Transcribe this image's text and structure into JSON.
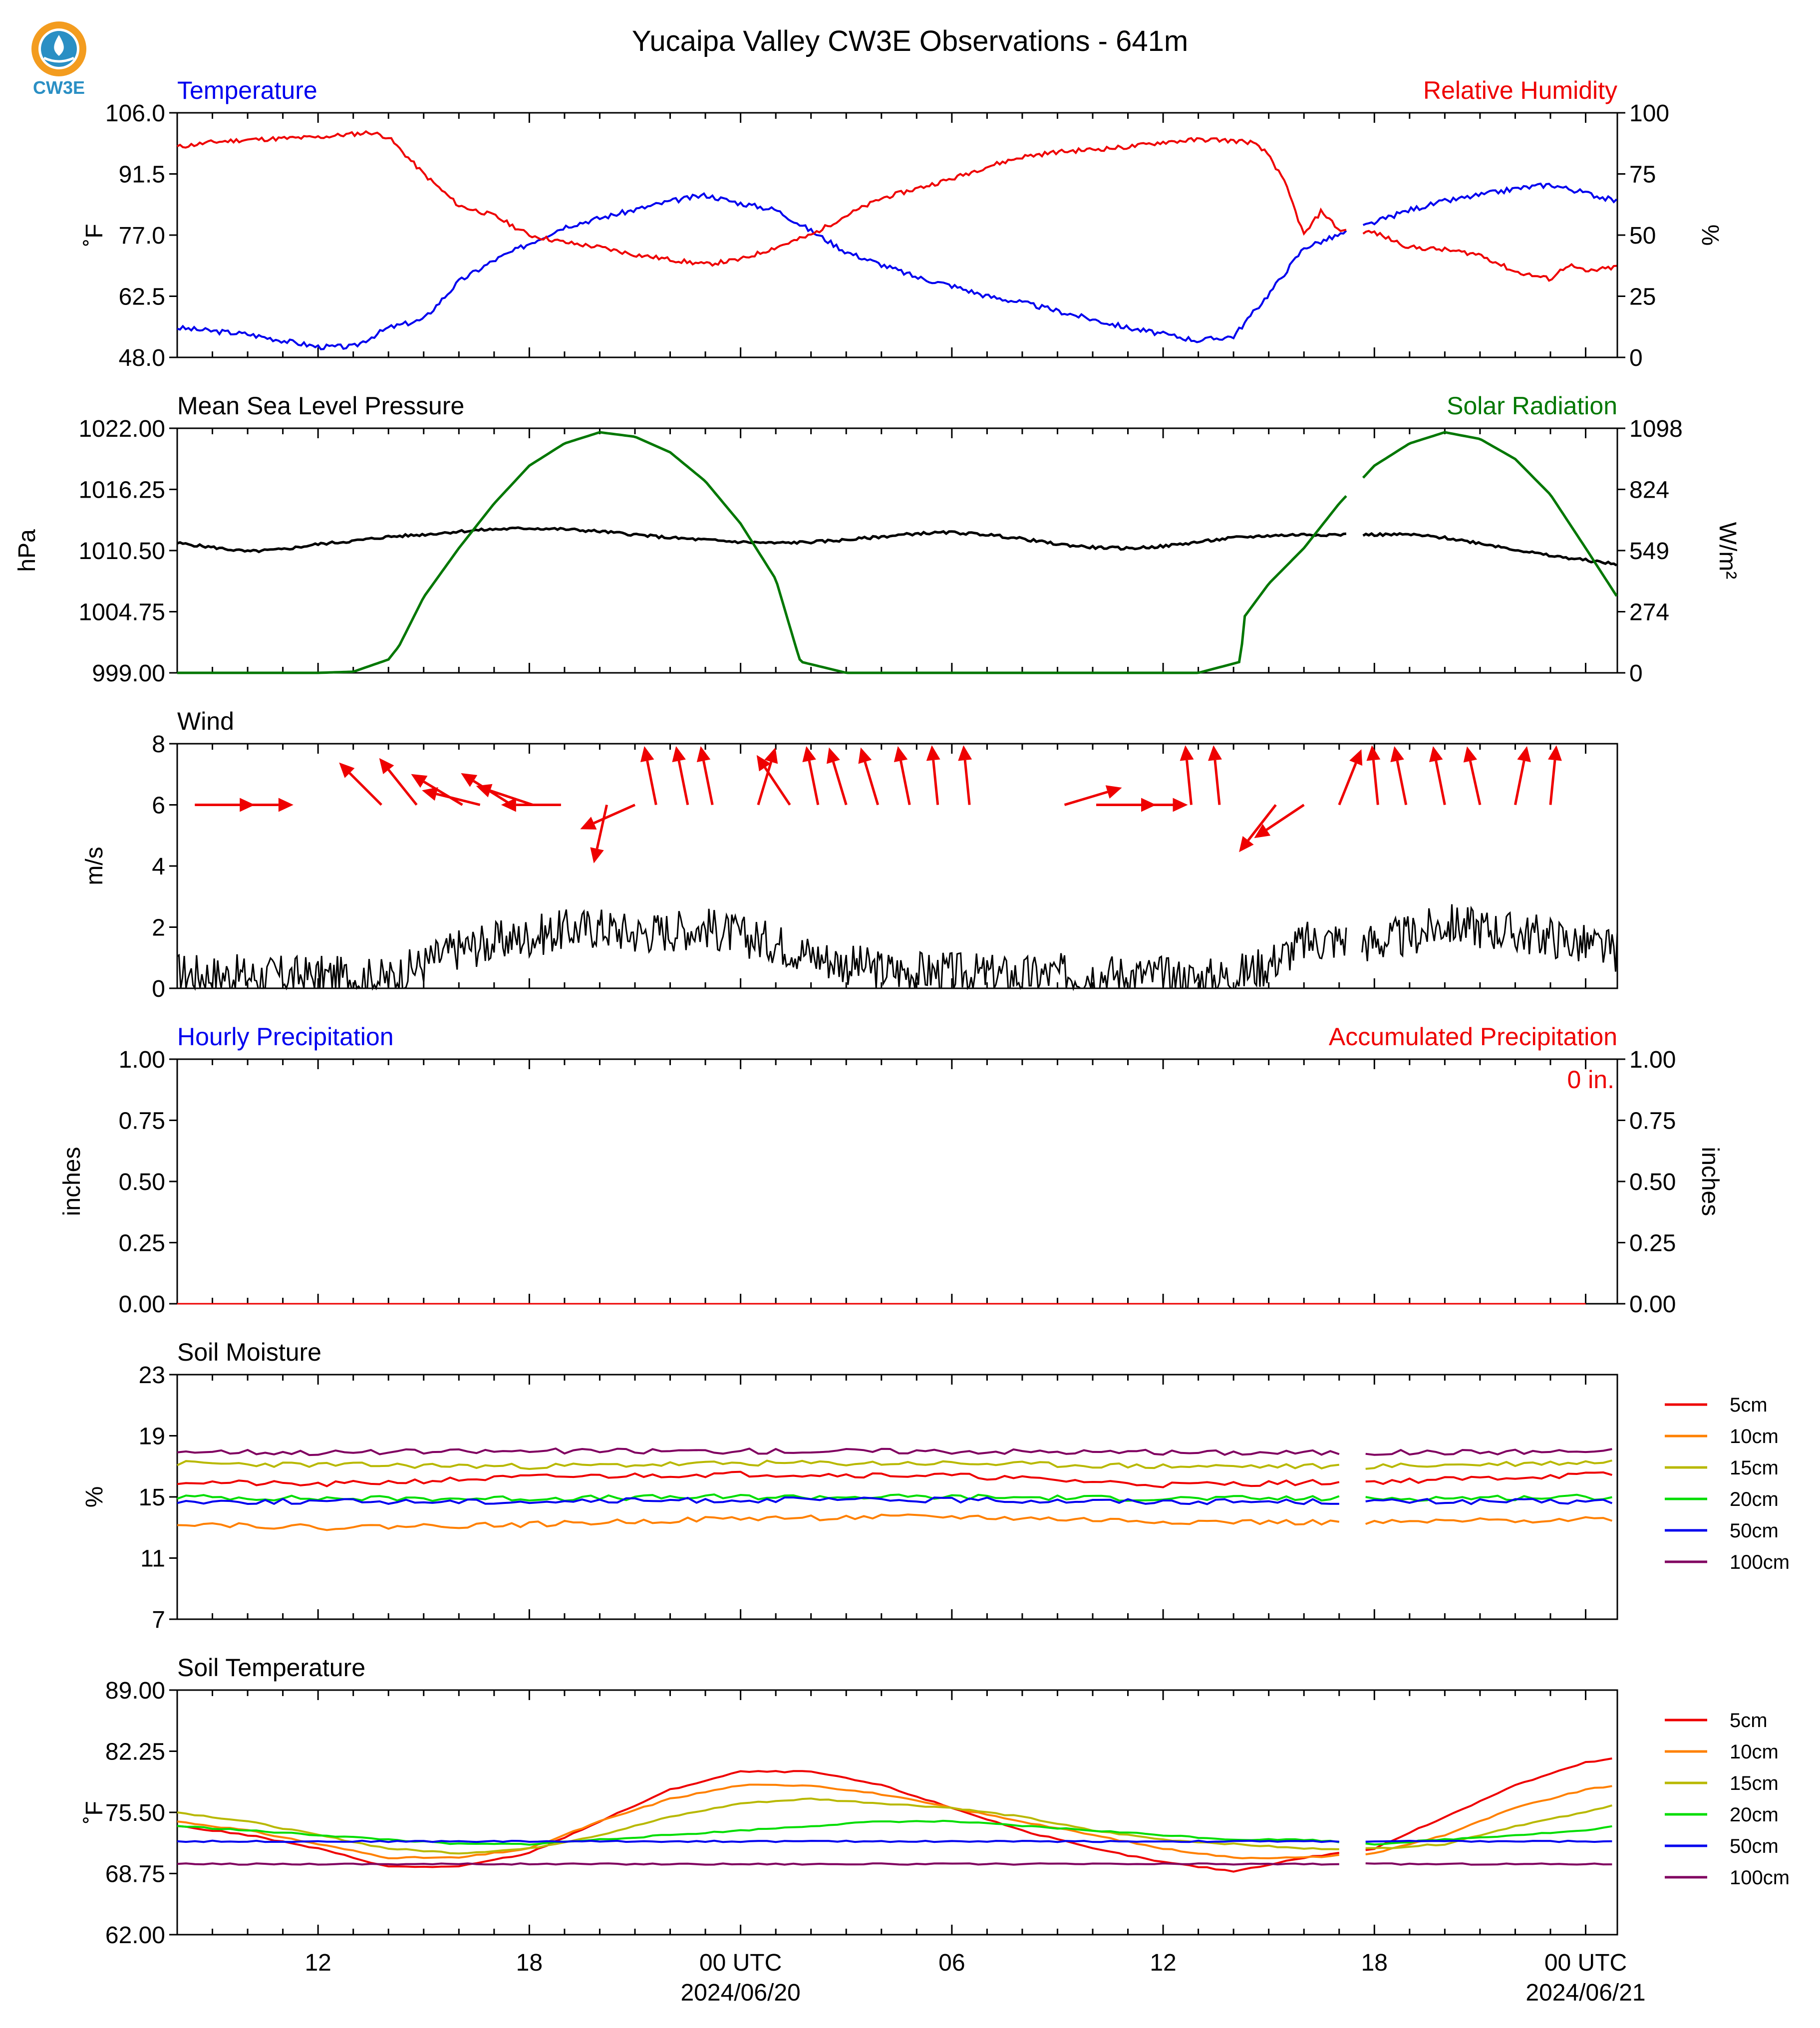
{
  "title": "Yucaipa Valley CW3E Observations - 641m",
  "logo": {
    "text": "CW3E",
    "color": "#2a8fc4",
    "accent": "#f39c1f"
  },
  "x_axis": {
    "ticks": [
      {
        "label": "12",
        "hour": 12
      },
      {
        "label": "18",
        "hour": 18
      },
      {
        "label": "00 UTC",
        "hour": 24
      },
      {
        "label": "06",
        "hour": 30
      },
      {
        "label": "12",
        "hour": 36
      },
      {
        "label": "18",
        "hour": 42
      },
      {
        "label": "00 UTC",
        "hour": 48
      }
    ],
    "dates": [
      {
        "label": "2024/06/20",
        "hour": 24
      },
      {
        "label": "2024/06/21",
        "hour": 48
      }
    ],
    "range_hours_utc": [
      8,
      48.9
    ],
    "reference": "2024/06/19 00 UTC = hour 0"
  },
  "panels": {
    "temp_rh": {
      "left_title": "Temperature",
      "right_title": "Relative Humidity",
      "left_ylabel": "˚F",
      "right_ylabel": "%",
      "left_ticks": [
        "106.0",
        "91.5",
        "77.0",
        "62.5",
        "48.0"
      ],
      "right_ticks": [
        "100",
        "75",
        "50",
        "25",
        "0"
      ]
    },
    "pressure_solar": {
      "left_title": "Mean Sea Level Pressure",
      "right_title": "Solar Radiation",
      "left_ylabel": "hPa",
      "right_ylabel": "W/m²",
      "left_ticks": [
        "1022.00",
        "1016.25",
        "1010.50",
        "1004.75",
        "999.00"
      ],
      "right_ticks": [
        "1098",
        "824",
        "549",
        "274",
        "0"
      ]
    },
    "wind": {
      "left_title": "Wind",
      "left_ylabel": "m/s",
      "left_ticks": [
        "8",
        "6",
        "4",
        "2",
        "0"
      ]
    },
    "precip": {
      "left_title": "Hourly Precipitation",
      "right_title": "Accumulated Precipitation",
      "left_ylabel": "inches",
      "right_ylabel": "inches",
      "left_ticks": [
        "1.00",
        "0.75",
        "0.50",
        "0.25",
        "0.00"
      ],
      "right_ticks": [
        "1.00",
        "0.75",
        "0.50",
        "0.25",
        "0.00"
      ],
      "accum_label": "0 in."
    },
    "soil_moisture": {
      "left_title": "Soil Moisture",
      "left_ylabel": "%",
      "left_ticks": [
        "23",
        "19",
        "15",
        "11",
        "7"
      ],
      "legend": [
        "5cm",
        "10cm",
        "15cm",
        "20cm",
        "50cm",
        "100cm"
      ]
    },
    "soil_temp": {
      "left_title": "Soil Temperature",
      "left_ylabel": "˚F",
      "left_ticks": [
        "89.00",
        "82.25",
        "75.50",
        "68.75",
        "62.00"
      ],
      "legend": [
        "5cm",
        "10cm",
        "15cm",
        "20cm",
        "50cm",
        "100cm"
      ]
    }
  },
  "colors": {
    "temperature": "#0000ee",
    "humidity": "#ee0000",
    "pressure": "#000000",
    "solar": "#007700",
    "wind_speed": "#000000",
    "wind_arrow": "#ee0000",
    "hourly_precip": "#0000ee",
    "accum_precip": "#ee0000",
    "depths": [
      "#ee0000",
      "#ff8000",
      "#b8b800",
      "#00dd00",
      "#0000ee",
      "#800060"
    ]
  },
  "chart_data": [
    {
      "type": "line",
      "panel": "temp_rh",
      "units_x": "hours since 2024/06/19 00 UTC",
      "series": [
        {
          "name": "Temperature",
          "axis": "left",
          "ylim": [
            48,
            106
          ],
          "x": [
            8,
            10,
            12,
            13,
            14,
            15,
            16,
            17,
            18,
            19,
            20,
            21,
            22,
            23,
            24,
            25,
            26,
            27,
            28,
            29,
            30,
            31,
            32,
            33,
            34,
            35,
            36,
            37,
            38,
            39,
            40,
            41,
            42,
            43,
            44,
            45,
            46,
            47,
            48,
            48.9
          ],
          "y": [
            55,
            53.5,
            50.5,
            50.5,
            55,
            57,
            66,
            71,
            75,
            79,
            81,
            83,
            85,
            86.5,
            84.5,
            83,
            78,
            73,
            70,
            67,
            65,
            62.5,
            61,
            59,
            57,
            55,
            53.5,
            52,
            53,
            63,
            74,
            77,
            80,
            83,
            85,
            86.5,
            88,
            89,
            87,
            85
          ]
        },
        {
          "name": "Relative Humidity",
          "axis": "right",
          "ylim": [
            0,
            100
          ],
          "x": [
            8,
            9,
            10,
            12,
            13.5,
            14,
            15,
            16,
            17,
            18,
            19,
            20,
            21,
            22,
            23,
            24,
            25,
            26,
            27,
            28,
            29,
            30,
            31,
            32,
            33,
            34,
            35,
            36,
            37,
            37.5,
            38.5,
            39,
            39.5,
            40,
            40.5,
            41,
            42,
            43,
            44,
            45,
            46,
            47,
            47.5,
            48,
            48.9
          ],
          "y": [
            86,
            88,
            89,
            90,
            92,
            90,
            75,
            62,
            58,
            50,
            47,
            45,
            42,
            40,
            38,
            40,
            45,
            50,
            58,
            65,
            69,
            73,
            78,
            82,
            84,
            85,
            86,
            88,
            89,
            89,
            88,
            83,
            70,
            50,
            60,
            52,
            51,
            45,
            44,
            42,
            35,
            32,
            38,
            35,
            37
          ]
        }
      ]
    },
    {
      "type": "line",
      "panel": "pressure_solar",
      "units_x": "hours since 2024/06/19 00 UTC",
      "series": [
        {
          "name": "Mean Sea Level Pressure",
          "axis": "left",
          "ylim": [
            999,
            1022
          ],
          "x": [
            8,
            9,
            10,
            11,
            12,
            13,
            14,
            15,
            16,
            17,
            18,
            19,
            20,
            21,
            22,
            23,
            24,
            25,
            26,
            27,
            28,
            29,
            30,
            31,
            32,
            33,
            34,
            35,
            36,
            37,
            38,
            39,
            40,
            41,
            42,
            43,
            44,
            45,
            46,
            47,
            48,
            48.9
          ],
          "y": [
            1011.2,
            1010.8,
            1010.4,
            1010.6,
            1011.1,
            1011.4,
            1011.8,
            1012,
            1012.3,
            1012.5,
            1012.6,
            1012.5,
            1012.3,
            1012.0,
            1011.7,
            1011.5,
            1011.3,
            1011.2,
            1011.3,
            1011.5,
            1011.8,
            1012.1,
            1012.2,
            1012,
            1011.6,
            1011.1,
            1010.8,
            1010.7,
            1010.9,
            1011.3,
            1011.7,
            1011.9,
            1012.0,
            1012.0,
            1012.0,
            1012.0,
            1011.7,
            1011.2,
            1010.6,
            1010.0,
            1009.6,
            1009.2
          ]
        },
        {
          "name": "Solar Radiation",
          "axis": "right",
          "ylim": [
            0,
            1098
          ],
          "x": [
            8,
            12,
            13,
            14,
            14.3,
            15,
            16,
            17,
            18,
            19,
            20,
            21,
            22,
            23,
            24,
            25,
            25.6,
            25.7,
            27,
            28,
            36,
            37,
            38.2,
            38.3,
            39,
            40,
            41,
            42,
            43,
            44,
            45,
            46,
            47,
            48,
            48.9
          ],
          "y": [
            0,
            0,
            5,
            60,
            120,
            340,
            560,
            760,
            930,
            1030,
            1080,
            1060,
            990,
            860,
            670,
            420,
            100,
            50,
            0,
            0,
            0,
            0,
            50,
            250,
            400,
            560,
            760,
            930,
            1030,
            1080,
            1050,
            960,
            800,
            560,
            340
          ]
        }
      ]
    },
    {
      "type": "line",
      "panel": "wind",
      "units_x": "hours since 2024/06/19 00 UTC",
      "ylim": [
        0,
        8
      ],
      "series": [
        {
          "name": "Wind",
          "x": [
            8,
            10,
            12,
            14,
            15,
            16,
            17,
            18,
            19,
            20,
            21,
            22,
            23,
            24,
            25,
            26,
            27,
            28,
            30,
            32,
            34,
            36,
            37,
            38,
            39,
            40,
            41,
            42,
            43,
            44,
            45,
            46,
            47,
            48,
            48.9
          ],
          "y": [
            0.5,
            0.4,
            0.4,
            0.3,
            0.8,
            1.3,
            1.5,
            1.7,
            1.9,
            2.0,
            1.8,
            1.9,
            2.0,
            1.7,
            1.5,
            1.1,
            0.8,
            0.6,
            0.5,
            0.4,
            0.5,
            0.4,
            0.3,
            0.4,
            0.8,
            1.5,
            1.6,
            1.5,
            1.7,
            2.1,
            2.0,
            1.8,
            1.7,
            1.4,
            1.2
          ]
        }
      ],
      "arrows": {
        "x": [
          8.5,
          9.6,
          13.8,
          14.8,
          16.1,
          16.6,
          17.5,
          18.1,
          18.9,
          20.2,
          21.0,
          21.6,
          22.5,
          23.2,
          24.5,
          25.4,
          26.2,
          27.0,
          27.9,
          28.8,
          29.6,
          30.5,
          33.2,
          34.1,
          35.0,
          36.8,
          37.6,
          39.2,
          40.0,
          41.0,
          42.1,
          42.9,
          44.0,
          45.0,
          46.0,
          47.0
        ],
        "u": [
          1,
          1,
          -1,
          -0.8,
          -1,
          -0.8,
          -0.8,
          -0.6,
          -0.9,
          -0.2,
          -0.9,
          -0.2,
          -0.2,
          -0.2,
          0.3,
          -0.6,
          -0.2,
          -0.3,
          -0.3,
          -0.2,
          -0.1,
          -0.1,
          1,
          1,
          1,
          -0.1,
          -0.1,
          -0.7,
          -0.9,
          0.4,
          -0.1,
          -0.2,
          -0.2,
          -0.2,
          0.2,
          0.1
        ],
        "v": [
          0,
          0,
          1,
          1,
          0.6,
          0.2,
          0.5,
          0.2,
          0,
          -0.9,
          -0.4,
          1,
          1,
          1,
          1,
          0.9,
          1,
          1,
          1,
          1,
          1,
          1,
          0.3,
          0,
          0,
          1,
          1,
          -0.9,
          -0.6,
          1,
          1,
          1,
          1,
          0.9,
          1,
          1
        ]
      }
    },
    {
      "type": "line",
      "panel": "precip",
      "units_x": "hours since 2024/06/19 00 UTC",
      "ylim": [
        0,
        1
      ],
      "series": [
        {
          "name": "Hourly Precipitation",
          "x": [
            8,
            48.9
          ],
          "y": [
            0,
            0
          ]
        },
        {
          "name": "Accumulated Precipitation",
          "x": [
            8,
            48.9
          ],
          "y": [
            0,
            0
          ]
        }
      ]
    },
    {
      "type": "line",
      "panel": "soil_moisture",
      "units_x": "hours since 2024/06/19 00 UTC",
      "ylim": [
        7,
        23
      ],
      "series": [
        {
          "name": "5cm",
          "x": [
            8,
            12,
            18,
            24,
            30,
            36,
            42,
            48.9
          ],
          "y": [
            16.0,
            15.8,
            16.3,
            16.5,
            16.4,
            15.8,
            16.0,
            16.5
          ]
        },
        {
          "name": "10cm",
          "x": [
            8,
            12,
            18,
            24,
            30,
            36,
            42,
            48.9
          ],
          "y": [
            13.3,
            13.0,
            13.2,
            13.6,
            13.7,
            13.4,
            13.3,
            13.6
          ]
        },
        {
          "name": "15cm",
          "x": [
            8,
            12,
            18,
            24,
            30,
            36,
            42,
            48.9
          ],
          "y": [
            17.2,
            17.1,
            17.0,
            17.2,
            17.2,
            17.0,
            17.0,
            17.3
          ]
        },
        {
          "name": "20cm",
          "x": [
            8,
            12,
            18,
            24,
            30,
            36,
            42,
            48.9
          ],
          "y": [
            15.0,
            14.9,
            14.9,
            15.0,
            15.0,
            14.9,
            14.9,
            15.0
          ]
        },
        {
          "name": "50cm",
          "x": [
            8,
            12,
            18,
            24,
            30,
            36,
            42,
            48.9
          ],
          "y": [
            14.7,
            14.7,
            14.7,
            14.8,
            14.8,
            14.7,
            14.7,
            14.7
          ]
        },
        {
          "name": "100cm",
          "x": [
            8,
            12,
            18,
            24,
            30,
            36,
            42,
            48.9
          ],
          "y": [
            18.0,
            17.9,
            18.0,
            18.0,
            18.0,
            17.9,
            17.9,
            18.0
          ]
        }
      ]
    },
    {
      "type": "line",
      "panel": "soil_temp",
      "units_x": "hours since 2024/06/19 00 UTC",
      "ylim": [
        62,
        89
      ],
      "series": [
        {
          "name": "5cm",
          "x": [
            8,
            10,
            12,
            14,
            16,
            18,
            20,
            22,
            24,
            26,
            28,
            30,
            32,
            34,
            36,
            38,
            40,
            42,
            44,
            46,
            48,
            48.9
          ],
          "y": [
            74,
            73,
            71.5,
            69.5,
            69.5,
            71,
            74.5,
            78,
            80,
            80,
            78.5,
            76,
            73.5,
            71.5,
            70,
            69,
            70.5,
            71.5,
            75,
            78.5,
            81,
            81.5
          ]
        },
        {
          "name": "10cm",
          "x": [
            8,
            10,
            12,
            14,
            16,
            18,
            20,
            22,
            24,
            26,
            28,
            30,
            32,
            34,
            36,
            38,
            40,
            42,
            44,
            46,
            48,
            48.9
          ],
          "y": [
            74.5,
            73.5,
            72,
            70.5,
            70.5,
            71.5,
            74.5,
            77,
            78.5,
            78.5,
            77.5,
            76,
            74.5,
            73,
            71.5,
            70.5,
            70.5,
            71,
            73,
            76,
            78,
            78.5
          ]
        },
        {
          "name": "15cm",
          "x": [
            8,
            10,
            12,
            14,
            16,
            18,
            20,
            22,
            24,
            26,
            28,
            30,
            32,
            34,
            36,
            38,
            40,
            42,
            44,
            46,
            48,
            48.9
          ],
          "y": [
            75.5,
            74.5,
            73,
            71.5,
            71,
            71.5,
            73,
            75,
            76.5,
            77,
            76.5,
            76,
            75,
            73.5,
            72.5,
            72,
            71.5,
            71.5,
            72,
            74,
            75.5,
            76.5
          ]
        },
        {
          "name": "20cm",
          "x": [
            8,
            10,
            12,
            14,
            16,
            18,
            20,
            22,
            24,
            26,
            28,
            30,
            32,
            34,
            36,
            38,
            40,
            42,
            44,
            46,
            48,
            48.9
          ],
          "y": [
            74,
            73.5,
            73,
            72.5,
            72,
            72,
            72.5,
            73,
            73.5,
            74,
            74.5,
            74.5,
            74,
            73.5,
            73,
            72.5,
            72.5,
            72,
            72.5,
            73,
            73.5,
            74
          ]
        },
        {
          "name": "50cm",
          "x": [
            8,
            48.9
          ],
          "y": [
            72.3,
            72.3
          ]
        },
        {
          "name": "100cm",
          "x": [
            8,
            48.9
          ],
          "y": [
            69.8,
            69.8
          ]
        }
      ]
    }
  ]
}
